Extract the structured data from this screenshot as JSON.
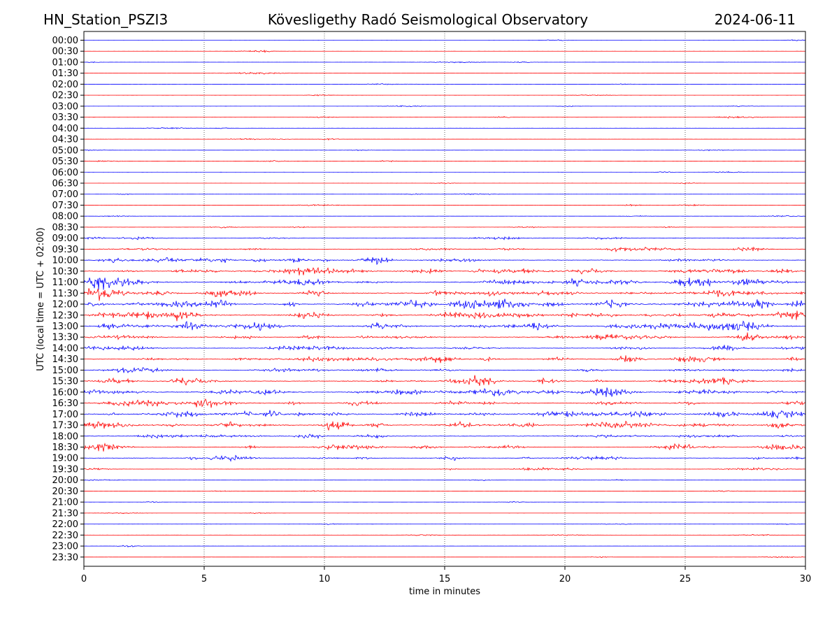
{
  "chart_data": {
    "type": "line",
    "title_left": "HN_Station_PSZI3",
    "title": "Kövesligethy Radó Seismological Observatory",
    "title_right": "2024-06-11",
    "xlabel": "time in minutes",
    "ylabel": "UTC (local time = UTC + 02:00)",
    "xlim": [
      0,
      30
    ],
    "x_ticks": [
      "0",
      "5",
      "10",
      "15",
      "20",
      "25",
      "30"
    ],
    "x_tick_values": [
      0,
      5,
      10,
      15,
      20,
      25,
      30
    ],
    "grid": "vertical dotted at 5-minute ticks",
    "series_colors": [
      "#0000ff",
      "#ff0000"
    ],
    "rows": [
      "00:00",
      "00:30",
      "01:00",
      "01:30",
      "02:00",
      "02:30",
      "03:00",
      "03:30",
      "04:00",
      "04:30",
      "05:00",
      "05:30",
      "06:00",
      "06:30",
      "07:00",
      "07:30",
      "08:00",
      "08:30",
      "09:00",
      "09:30",
      "10:00",
      "10:30",
      "11:00",
      "11:30",
      "12:00",
      "12:30",
      "13:00",
      "13:30",
      "14:00",
      "14:30",
      "15:00",
      "15:30",
      "16:00",
      "16:30",
      "17:00",
      "17:30",
      "18:00",
      "18:30",
      "19:00",
      "19:30",
      "20:00",
      "20:30",
      "21:00",
      "21:30",
      "22:00",
      "22:30",
      "23:00",
      "23:30"
    ],
    "relative_activity": [
      0.2,
      0.2,
      0.3,
      0.2,
      0.2,
      0.2,
      0.3,
      0.4,
      0.2,
      0.3,
      0.3,
      0.3,
      0.2,
      0.2,
      0.3,
      0.3,
      0.3,
      0.4,
      0.8,
      1.0,
      1.6,
      2.0,
      2.4,
      2.4,
      2.6,
      2.4,
      2.4,
      1.6,
      1.4,
      1.8,
      1.2,
      1.8,
      2.0,
      1.8,
      2.2,
      2.2,
      1.4,
      1.6,
      1.2,
      0.6,
      0.3,
      0.3,
      0.2,
      0.2,
      0.3,
      0.3,
      0.2,
      0.2
    ]
  }
}
